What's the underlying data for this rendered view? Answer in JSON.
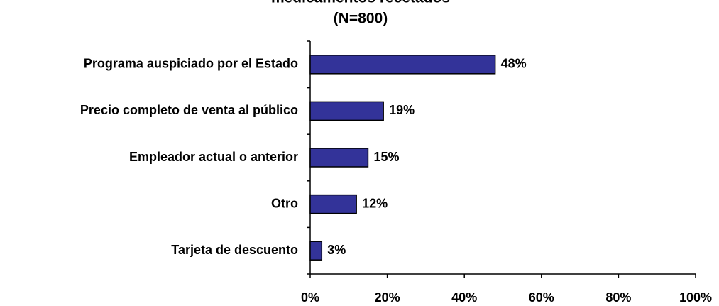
{
  "chart_data": {
    "type": "bar",
    "orientation": "horizontal",
    "title": "medicamentos recetados",
    "subtitle": "(N=800)",
    "categories": [
      "Programa auspiciado por el Estado",
      "Precio completo de venta al público",
      "Empleador actual o anterior",
      "Otro",
      "Tarjeta de descuento"
    ],
    "values": [
      48,
      19,
      15,
      12,
      3
    ],
    "value_labels": [
      "48%",
      "19%",
      "15%",
      "12%",
      "3%"
    ],
    "color": "#333399",
    "xlim": [
      0,
      100
    ],
    "xticks": [
      {
        "value": 0,
        "label": "0%"
      },
      {
        "value": 20,
        "label": "20%"
      },
      {
        "value": 40,
        "label": "40%"
      },
      {
        "value": 60,
        "label": "60%"
      },
      {
        "value": 80,
        "label": "80%"
      },
      {
        "value": 100,
        "label": "100%"
      }
    ],
    "grid": false
  }
}
